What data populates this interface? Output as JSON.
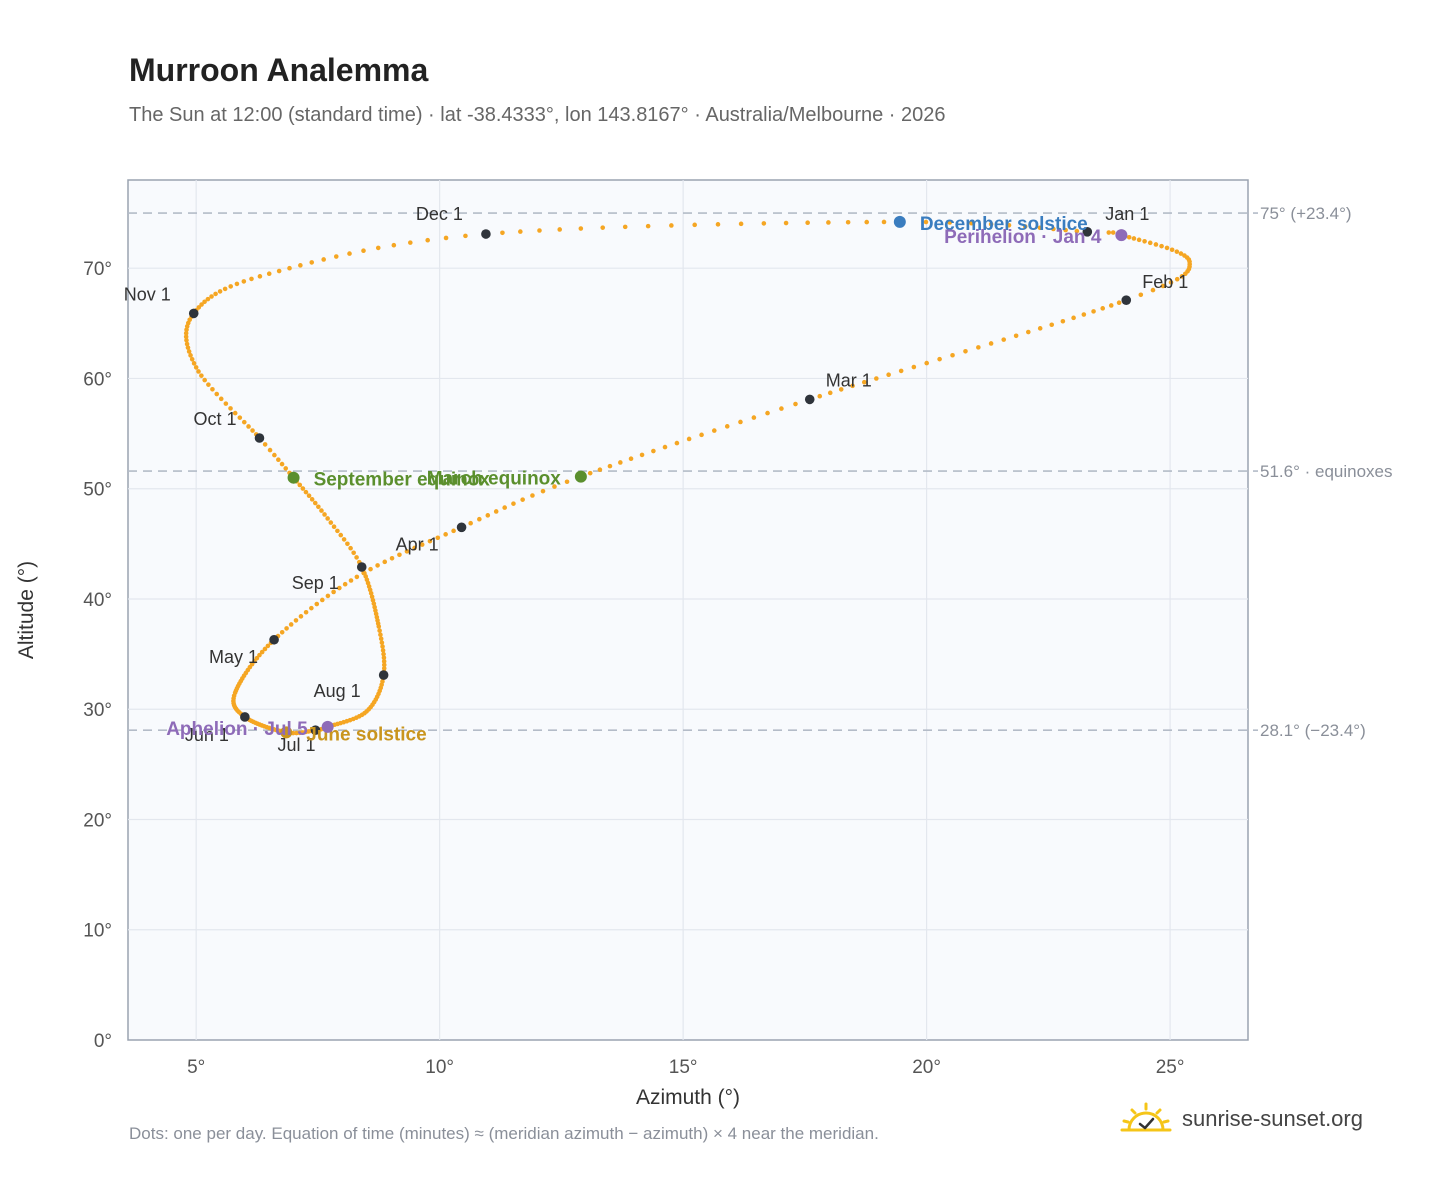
{
  "header": {
    "title": "Murroon Analemma",
    "subtitle": "The Sun at 12:00 (standard time) · lat -38.4333°, lon 143.8167° · Australia/Melbourne · 2026"
  },
  "footer": {
    "note": "Dots: one per day. Equation of time (minutes) ≈ (meridian azimuth − azimuth) × 4 near the meridian.",
    "brand": "sunrise-sunset.org"
  },
  "chart_data": {
    "type": "scatter",
    "xlabel": "Azimuth (°)",
    "ylabel": "Altitude (°)",
    "xlim": [
      3.6,
      26.6
    ],
    "ylim": [
      0,
      78
    ],
    "x_ticks": [
      5,
      10,
      15,
      20,
      25
    ],
    "y_ticks": [
      0,
      10,
      20,
      30,
      40,
      50,
      60,
      70
    ],
    "x_tick_labels": [
      "5°",
      "10°",
      "15°",
      "20°",
      "25°"
    ],
    "y_tick_labels": [
      "0°",
      "10°",
      "20°",
      "30°",
      "40°",
      "50°",
      "60°",
      "70°"
    ],
    "grid": true,
    "series_color": "#f5a623",
    "path_keypoints": [
      {
        "day": 1,
        "az": 23.3,
        "alt": 73.3
      },
      {
        "day": 4,
        "az": 24.0,
        "alt": 73.0
      },
      {
        "day": 20,
        "az": 25.4,
        "alt": 70.6
      },
      {
        "day": 32,
        "az": 24.1,
        "alt": 67.1
      },
      {
        "day": 60,
        "az": 17.6,
        "alt": 58.1
      },
      {
        "day": 79,
        "az": 12.9,
        "alt": 51.1
      },
      {
        "day": 91,
        "az": 10.45,
        "alt": 46.5
      },
      {
        "day": 105,
        "az": 8.3,
        "alt": 42.0
      },
      {
        "day": 121,
        "az": 6.6,
        "alt": 36.3
      },
      {
        "day": 140,
        "az": 5.8,
        "alt": 31.5
      },
      {
        "day": 152,
        "az": 6.0,
        "alt": 29.3
      },
      {
        "day": 172,
        "az": 6.85,
        "alt": 27.9
      },
      {
        "day": 182,
        "az": 7.45,
        "alt": 28.1
      },
      {
        "day": 186,
        "az": 7.7,
        "alt": 28.4
      },
      {
        "day": 200,
        "az": 8.5,
        "alt": 29.8
      },
      {
        "day": 213,
        "az": 8.85,
        "alt": 33.1
      },
      {
        "day": 226,
        "az": 8.75,
        "alt": 37.5
      },
      {
        "day": 244,
        "az": 8.4,
        "alt": 42.9
      },
      {
        "day": 255,
        "az": 7.7,
        "alt": 47.3
      },
      {
        "day": 266,
        "az": 7.0,
        "alt": 51.0
      },
      {
        "day": 274,
        "az": 6.3,
        "alt": 54.6
      },
      {
        "day": 290,
        "az": 5.0,
        "alt": 61.0
      },
      {
        "day": 305,
        "az": 4.95,
        "alt": 65.9
      },
      {
        "day": 320,
        "az": 6.5,
        "alt": 69.5
      },
      {
        "day": 335,
        "az": 10.95,
        "alt": 73.1
      },
      {
        "day": 355,
        "az": 19.45,
        "alt": 74.2
      },
      {
        "day": 366,
        "az": 23.3,
        "alt": 73.3
      }
    ],
    "month_markers": [
      {
        "label": "Jan 1",
        "az": 23.3,
        "alt": 73.3,
        "dx": 18,
        "dy": -12,
        "anchor": "start"
      },
      {
        "label": "Feb 1",
        "az": 24.1,
        "alt": 67.1,
        "dx": 16,
        "dy": -12,
        "anchor": "start"
      },
      {
        "label": "Mar 1",
        "az": 17.6,
        "alt": 58.1,
        "dx": 16,
        "dy": -13,
        "anchor": "start"
      },
      {
        "label": "Apr 1",
        "az": 10.45,
        "alt": 46.5,
        "dx": -66,
        "dy": 23,
        "anchor": "start"
      },
      {
        "label": "May 1",
        "az": 6.6,
        "alt": 36.3,
        "dx": -16,
        "dy": 23,
        "anchor": "end"
      },
      {
        "label": "Jun 1",
        "az": 6.0,
        "alt": 29.3,
        "dx": -16,
        "dy": 24,
        "anchor": "end"
      },
      {
        "label": "Jul 1",
        "az": 7.45,
        "alt": 28.1,
        "dx": -38,
        "dy": 21,
        "anchor": "start"
      },
      {
        "label": "Aug 1",
        "az": 8.85,
        "alt": 33.1,
        "dx": -70,
        "dy": 22,
        "anchor": "start"
      },
      {
        "label": "Sep 1",
        "az": 8.4,
        "alt": 42.9,
        "dx": -70,
        "dy": 22,
        "anchor": "start"
      },
      {
        "label": "Oct 1",
        "az": 6.3,
        "alt": 54.6,
        "dx": -66,
        "dy": -13,
        "anchor": "start"
      },
      {
        "label": "Nov 1",
        "az": 4.95,
        "alt": 65.9,
        "dx": -70,
        "dy": -13,
        "anchor": "start"
      },
      {
        "label": "Dec 1",
        "az": 10.95,
        "alt": 73.1,
        "dx": -70,
        "dy": -14,
        "anchor": "start"
      }
    ],
    "events": [
      {
        "label": "December solstice",
        "az": 19.45,
        "alt": 74.2,
        "color": "#3a7dbf",
        "dx": 20,
        "dy": 8,
        "anchor": "start"
      },
      {
        "label": "Perihelion · Jan 4",
        "az": 24.0,
        "alt": 73.0,
        "color": "#8e6bb8",
        "dx": -20,
        "dy": 8,
        "anchor": "end"
      },
      {
        "label": "March equinox",
        "az": 12.9,
        "alt": 51.1,
        "color": "#5b8f2e",
        "dx": -20,
        "dy": 8,
        "anchor": "end"
      },
      {
        "label": "September equinox",
        "az": 7.0,
        "alt": 51.0,
        "color": "#5b8f2e",
        "dx": 20,
        "dy": 8,
        "anchor": "start"
      },
      {
        "label": "June solstice",
        "az": 6.85,
        "alt": 27.9,
        "color": "#c9951e",
        "dx": 20,
        "dy": 8,
        "anchor": "start"
      },
      {
        "label": "Aphelion · Jul 5",
        "az": 7.7,
        "alt": 28.4,
        "color": "#8e6bb8",
        "dx": -20,
        "dy": 8,
        "anchor": "end"
      }
    ],
    "reference_lines": [
      {
        "alt": 75.0,
        "label": "75° (+23.4°)"
      },
      {
        "alt": 51.6,
        "label": "51.6° · equinoxes"
      },
      {
        "alt": 28.1,
        "label": "28.1° (−23.4°)"
      }
    ]
  }
}
